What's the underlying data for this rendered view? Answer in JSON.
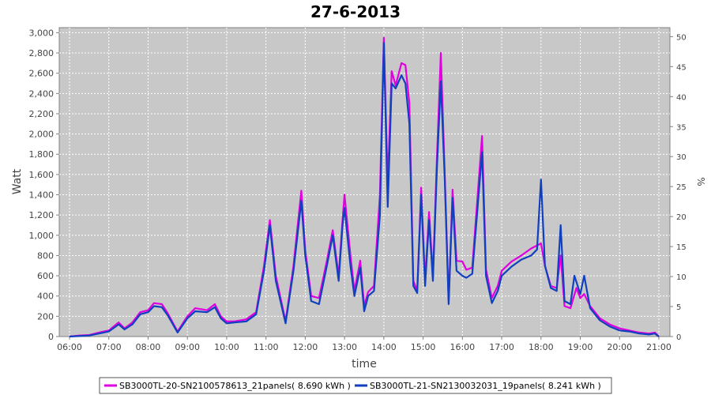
{
  "chart_data": {
    "type": "line",
    "title": "27-6-2013",
    "xlabel": "time",
    "ylabel": "Watt",
    "y2label": "%",
    "xlim": [
      6.0,
      21.25
    ],
    "ylim": [
      0,
      3050
    ],
    "y2lim": [
      0,
      51.5
    ],
    "x_ticks": [
      "06:00",
      "07:00",
      "08:00",
      "09:00",
      "10:00",
      "11:00",
      "12:00",
      "13:00",
      "14:00",
      "15:00",
      "16:00",
      "17:00",
      "18:00",
      "19:00",
      "20:00",
      "21:00"
    ],
    "y_ticks": [
      "0",
      "200",
      "400",
      "600",
      "800",
      "1,000",
      "1,200",
      "1,400",
      "1,600",
      "1,800",
      "2,000",
      "2,200",
      "2,400",
      "2,600",
      "2,800",
      "3,000"
    ],
    "y2_ticks": [
      "0",
      "5",
      "10",
      "15",
      "20",
      "25",
      "30",
      "35",
      "40",
      "45",
      "50"
    ],
    "grid": true,
    "legend_position": "bottom",
    "series": [
      {
        "name": "SB3000TL-20-SN2100578613_21panels( 8.690 kWh )",
        "color": "#e000e0",
        "x": [
          6.0,
          6.25,
          6.5,
          6.75,
          7.0,
          7.25,
          7.4,
          7.6,
          7.8,
          8.0,
          8.15,
          8.35,
          8.5,
          8.75,
          9.0,
          9.2,
          9.5,
          9.7,
          9.85,
          10.0,
          10.2,
          10.5,
          10.75,
          10.95,
          11.1,
          11.25,
          11.5,
          11.7,
          11.9,
          12.0,
          12.15,
          12.35,
          12.55,
          12.7,
          12.85,
          12.95,
          13.0,
          13.15,
          13.25,
          13.4,
          13.5,
          13.6,
          13.75,
          13.9,
          14.0,
          14.1,
          14.2,
          14.3,
          14.45,
          14.55,
          14.65,
          14.75,
          14.85,
          14.95,
          15.05,
          15.15,
          15.25,
          15.35,
          15.45,
          15.55,
          15.65,
          15.75,
          15.85,
          16.0,
          16.1,
          16.25,
          16.5,
          16.6,
          16.75,
          16.9,
          17.0,
          17.25,
          17.5,
          17.75,
          18.0,
          18.1,
          18.25,
          18.4,
          18.5,
          18.6,
          18.75,
          18.9,
          19.0,
          19.1,
          19.25,
          19.5,
          19.75,
          20.0,
          20.25,
          20.5,
          20.75,
          20.9,
          21.0
        ],
        "y": [
          0,
          10,
          15,
          40,
          60,
          140,
          80,
          140,
          240,
          260,
          330,
          320,
          230,
          50,
          200,
          280,
          260,
          320,
          200,
          150,
          150,
          170,
          240,
          700,
          1150,
          600,
          150,
          700,
          1440,
          850,
          400,
          380,
          750,
          1050,
          600,
          1150,
          1400,
          800,
          450,
          750,
          300,
          440,
          500,
          1400,
          2950,
          1500,
          2620,
          2480,
          2700,
          2680,
          2300,
          550,
          450,
          1470,
          550,
          1230,
          600,
          1750,
          2800,
          1600,
          350,
          1450,
          750,
          740,
          660,
          680,
          1980,
          660,
          380,
          500,
          650,
          740,
          800,
          870,
          920,
          700,
          500,
          480,
          800,
          300,
          280,
          480,
          380,
          420,
          300,
          180,
          120,
          80,
          60,
          40,
          30,
          40,
          0
        ]
      },
      {
        "name": "SB3000TL-21-SN2130032031_19panels( 8.241 kWh )",
        "color": "#1040c0",
        "x": [
          6.0,
          6.25,
          6.5,
          6.75,
          7.0,
          7.25,
          7.4,
          7.6,
          7.8,
          8.0,
          8.15,
          8.35,
          8.5,
          8.75,
          9.0,
          9.2,
          9.5,
          9.7,
          9.85,
          10.0,
          10.2,
          10.5,
          10.75,
          10.95,
          11.1,
          11.25,
          11.5,
          11.7,
          11.9,
          12.0,
          12.15,
          12.35,
          12.55,
          12.7,
          12.85,
          12.95,
          13.0,
          13.15,
          13.25,
          13.4,
          13.5,
          13.6,
          13.75,
          13.9,
          14.0,
          14.1,
          14.2,
          14.3,
          14.45,
          14.55,
          14.65,
          14.75,
          14.85,
          14.95,
          15.05,
          15.15,
          15.25,
          15.35,
          15.45,
          15.55,
          15.65,
          15.75,
          15.85,
          16.0,
          16.1,
          16.25,
          16.5,
          16.6,
          16.75,
          16.9,
          17.0,
          17.25,
          17.5,
          17.75,
          17.9,
          18.0,
          18.1,
          18.25,
          18.4,
          18.5,
          18.6,
          18.75,
          18.85,
          19.0,
          19.1,
          19.25,
          19.5,
          19.75,
          20.0,
          20.25,
          20.5,
          20.75,
          20.9,
          21.0
        ],
        "y": [
          0,
          5,
          10,
          30,
          50,
          120,
          70,
          120,
          220,
          240,
          300,
          290,
          210,
          40,
          180,
          250,
          240,
          290,
          180,
          130,
          140,
          150,
          220,
          650,
          1100,
          550,
          130,
          650,
          1340,
          800,
          350,
          320,
          700,
          1000,
          550,
          1100,
          1270,
          700,
          400,
          680,
          250,
          400,
          450,
          1200,
          2900,
          1280,
          2500,
          2450,
          2580,
          2500,
          2100,
          500,
          430,
          1400,
          500,
          1150,
          550,
          1650,
          2520,
          1550,
          320,
          1370,
          650,
          600,
          580,
          620,
          1820,
          600,
          330,
          450,
          600,
          690,
          760,
          800,
          860,
          1550,
          700,
          480,
          450,
          1100,
          350,
          320,
          600,
          420,
          600,
          280,
          160,
          100,
          60,
          50,
          30,
          20,
          30,
          0
        ]
      }
    ]
  }
}
